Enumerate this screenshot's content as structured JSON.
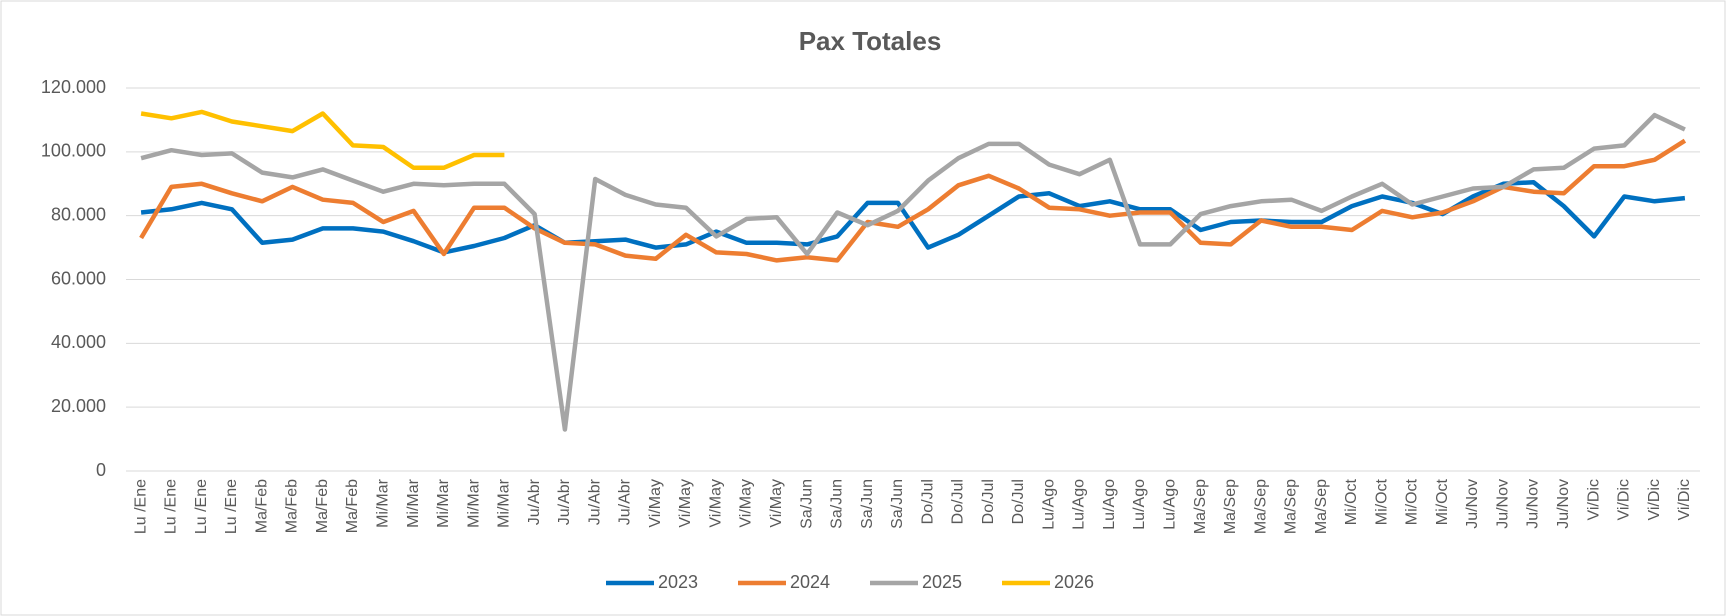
{
  "chart_data": {
    "type": "line",
    "title": "Pax Totales",
    "categories": [
      "Lu /Ene",
      "Lu /Ene",
      "Lu /Ene",
      "Lu /Ene",
      "Ma/Feb",
      "Ma/Feb",
      "Ma/Feb",
      "Ma/Feb",
      "Mi/Mar",
      "Mi/Mar",
      "Mi/Mar",
      "Mi/Mar",
      "Mi/Mar",
      "Ju/Abr",
      "Ju/Abr",
      "Ju/Abr",
      "Ju/Abr",
      "Vi/May",
      "Vi/May",
      "Vi/May",
      "Vi/May",
      "Vi/May",
      "Sa/Jun",
      "Sa/Jun",
      "Sa/Jun",
      "Sa/Jun",
      "Do/Jul",
      "Do/Jul",
      "Do/Jul",
      "Do/Jul",
      "Lu/Ago",
      "Lu/Ago",
      "Lu/Ago",
      "Lu/Ago",
      "Lu/Ago",
      "Ma/Sep",
      "Ma/Sep",
      "Ma/Sep",
      "Ma/Sep",
      "Ma/Sep",
      "Mi/Oct",
      "Mi/Oct",
      "Mi/Oct",
      "Mi/Oct",
      "Ju/Nov",
      "Ju/Nov",
      "Ju/Nov",
      "Ju/Nov",
      "Vi/Dic",
      "Vi/Dic",
      "Vi/Dic",
      "Vi/Dic"
    ],
    "series": [
      {
        "name": "2023",
        "color": "#0070c0",
        "values": [
          81000,
          82000,
          84000,
          82000,
          71500,
          72500,
          76000,
          76000,
          75000,
          72000,
          68500,
          70500,
          73000,
          77000,
          71500,
          72000,
          72500,
          70000,
          71000,
          75000,
          71500,
          71500,
          71000,
          73500,
          84000,
          84000,
          70000,
          74000,
          80000,
          86000,
          87000,
          83000,
          84500,
          82000,
          82000,
          75500,
          78000,
          78500,
          78000,
          78000,
          83000,
          86000,
          84000,
          80500,
          86000,
          90000,
          90500,
          83000,
          73500,
          86000,
          84500,
          85500
        ]
      },
      {
        "name": "2024",
        "color": "#ed7d31",
        "values": [
          73000,
          89000,
          90000,
          87000,
          84500,
          89000,
          85000,
          84000,
          78000,
          81500,
          68000,
          82500,
          82500,
          76000,
          71500,
          71000,
          67500,
          66500,
          74000,
          68500,
          68000,
          66000,
          67000,
          66000,
          78000,
          76500,
          82000,
          89500,
          92500,
          88500,
          82500,
          82000,
          80000,
          81000,
          81000,
          71500,
          71000,
          78500,
          76500,
          76500,
          75500,
          81500,
          79500,
          81000,
          84500,
          89000,
          87500,
          87000,
          95500,
          95500,
          97500,
          103500
        ]
      },
      {
        "name": "2025",
        "color": "#a5a5a5",
        "values": [
          98000,
          100500,
          99000,
          99500,
          93500,
          92000,
          94500,
          91000,
          87500,
          90000,
          89500,
          90000,
          90000,
          80500,
          13000,
          91500,
          86500,
          83500,
          82500,
          73500,
          79000,
          79500,
          68000,
          81000,
          77000,
          81500,
          91000,
          98000,
          102500,
          102500,
          96000,
          93000,
          97500,
          71000,
          71000,
          80500,
          83000,
          84500,
          85000,
          81500,
          86000,
          90000,
          83500,
          86000,
          88500,
          89000,
          94500,
          95000,
          101000,
          102000,
          111500,
          107000
        ]
      },
      {
        "name": "2026",
        "color": "#ffc000",
        "values": [
          112000,
          110500,
          112500,
          109500,
          108000,
          106500,
          112000,
          102000,
          101500,
          95000,
          95000,
          99000,
          99000,
          null,
          null,
          null,
          null,
          null,
          null,
          null,
          null,
          null,
          null,
          null,
          null,
          null,
          null,
          null,
          null,
          null,
          null,
          null,
          null,
          null,
          null,
          null,
          null,
          null,
          null,
          null,
          null,
          null,
          null,
          null,
          null,
          null,
          null,
          null,
          null,
          null,
          null,
          null
        ]
      }
    ],
    "ylim": [
      0,
      120000
    ],
    "yticks": [
      0,
      {
        "value": 20000,
        "label": "20.000"
      },
      {
        "value": 40000,
        "label": "40.000"
      },
      {
        "value": 60000,
        "label": "60.000"
      },
      {
        "value": 80000,
        "label": "80.000"
      },
      {
        "value": 100000,
        "label": "100.000"
      },
      {
        "value": 120000,
        "label": "120.000"
      }
    ],
    "grid": true,
    "legend": "bottom"
  }
}
